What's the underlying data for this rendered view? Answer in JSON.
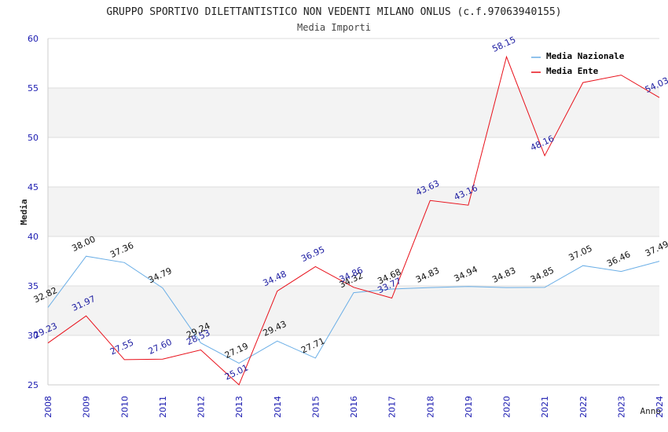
{
  "chart_data": {
    "type": "line",
    "title": "GRUPPO SPORTIVO DILETTANTISTICO NON VEDENTI MILANO ONLUS (c.f.97063940155)",
    "subtitle": "Media Importi",
    "xlabel": "Anno",
    "ylabel": "Media",
    "ylim": [
      25,
      60
    ],
    "yticks": [
      "25",
      "30",
      "35",
      "40",
      "45",
      "50",
      "55",
      "60"
    ],
    "grid": "horizontal bands",
    "legend_position": "top-right",
    "x": [
      "2008",
      "2009",
      "2010",
      "2011",
      "2012",
      "2013",
      "2014",
      "2015",
      "2016",
      "2017",
      "2018",
      "2019",
      "2020",
      "2021",
      "2022",
      "2023",
      "2024"
    ],
    "series": [
      {
        "name": "Media Nazionale",
        "color": "#6aaee6",
        "values": [
          32.82,
          38.0,
          37.36,
          34.79,
          29.24,
          27.19,
          29.43,
          27.71,
          34.32,
          34.68,
          34.83,
          34.94,
          34.83,
          34.85,
          37.05,
          36.46,
          37.49
        ],
        "labels": [
          "32.82",
          "38.00",
          "37.36",
          "34.79",
          "29.24",
          "27.19",
          "29.43",
          "27.71",
          "34.32",
          "34.68",
          "34.83",
          "34.94",
          "34.83",
          "34.85",
          "37.05",
          "36.46",
          "37.49"
        ]
      },
      {
        "name": "Media Ente",
        "color": "#e8101a",
        "values": [
          29.23,
          31.97,
          27.55,
          27.6,
          28.53,
          25.01,
          34.48,
          36.95,
          34.86,
          33.77,
          43.63,
          43.16,
          58.15,
          48.16,
          55.55,
          56.3,
          54.03
        ],
        "labels": [
          "29.23",
          "31.97",
          "27.55",
          "27.60",
          "28.53",
          "25.01",
          "34.48",
          "36.95",
          "34.86",
          "33.77",
          "43.63",
          "43.16",
          "58.15",
          "48.16",
          "",
          "",
          "54.03"
        ]
      }
    ]
  }
}
